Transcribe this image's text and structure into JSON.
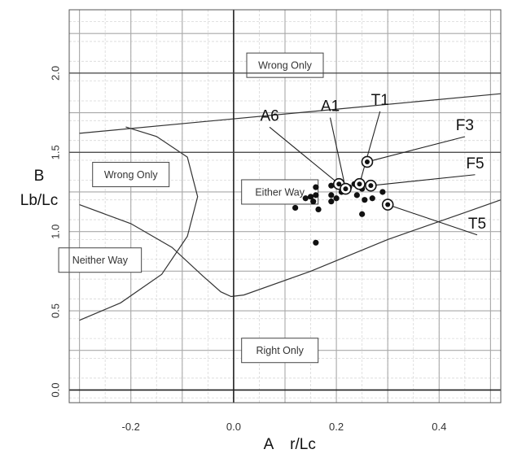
{
  "chart_data": {
    "type": "scatter",
    "title": "",
    "xlabel_letter": "A",
    "xlabel": "r/Lc",
    "ylabel_letter": "B",
    "ylabel": "Lb/Lc",
    "xlim": [
      -0.32,
      0.52
    ],
    "ylim": [
      -0.08,
      2.4
    ],
    "x_ticks": [
      {
        "value": -0.2,
        "label": "-0.2"
      },
      {
        "value": 0.0,
        "label": "0.0"
      },
      {
        "value": 0.2,
        "label": "0.2"
      },
      {
        "value": 0.4,
        "label": "0.4"
      }
    ],
    "y_ticks": [
      {
        "value": 0.0,
        "label": "0.0"
      },
      {
        "value": 0.5,
        "label": "0.5"
      },
      {
        "value": 1.0,
        "label": "1.0"
      },
      {
        "value": 1.5,
        "label": "1.5"
      },
      {
        "value": 2.0,
        "label": "2.0"
      }
    ],
    "grid": true,
    "regions": [
      {
        "label": "Wrong Only",
        "x": 0.1,
        "y": 2.05
      },
      {
        "label": "Wrong Only",
        "x": -0.2,
        "y": 1.36
      },
      {
        "label": "Either Way",
        "x": 0.09,
        "y": 1.25
      },
      {
        "label": "Neither Way",
        "x": -0.26,
        "y": 0.82
      },
      {
        "label": "Right Only",
        "x": 0.09,
        "y": 0.25
      }
    ],
    "boundaries": [
      {
        "points": [
          [
            -0.3,
            1.62
          ],
          [
            0.52,
            1.87
          ]
        ]
      },
      {
        "points": [
          [
            -0.3,
            1.17
          ],
          [
            -0.2,
            1.05
          ],
          [
            -0.12,
            0.9
          ],
          [
            -0.06,
            0.72
          ],
          [
            -0.025,
            0.62
          ],
          [
            -0.005,
            0.59
          ],
          [
            0.02,
            0.6
          ],
          [
            0.15,
            0.75
          ],
          [
            0.3,
            0.95
          ],
          [
            0.45,
            1.12
          ],
          [
            0.52,
            1.2
          ]
        ]
      },
      {
        "points": [
          [
            -0.3,
            0.44
          ],
          [
            -0.22,
            0.55
          ],
          [
            -0.14,
            0.73
          ],
          [
            -0.09,
            0.97
          ],
          [
            -0.07,
            1.22
          ],
          [
            -0.09,
            1.47
          ],
          [
            -0.15,
            1.6
          ],
          [
            -0.21,
            1.66
          ]
        ]
      }
    ],
    "points": [
      {
        "x": 0.12,
        "y": 1.15
      },
      {
        "x": 0.14,
        "y": 1.21
      },
      {
        "x": 0.15,
        "y": 1.22
      },
      {
        "x": 0.16,
        "y": 1.28
      },
      {
        "x": 0.16,
        "y": 1.23
      },
      {
        "x": 0.155,
        "y": 1.19
      },
      {
        "x": 0.165,
        "y": 1.14
      },
      {
        "x": 0.19,
        "y": 1.29
      },
      {
        "x": 0.19,
        "y": 1.23
      },
      {
        "x": 0.19,
        "y": 1.19
      },
      {
        "x": 0.2,
        "y": 1.21
      },
      {
        "x": 0.21,
        "y": 1.25
      },
      {
        "x": 0.215,
        "y": 1.26
      },
      {
        "x": 0.225,
        "y": 1.28
      },
      {
        "x": 0.235,
        "y": 1.3
      },
      {
        "x": 0.24,
        "y": 1.23
      },
      {
        "x": 0.25,
        "y": 1.27
      },
      {
        "x": 0.255,
        "y": 1.2
      },
      {
        "x": 0.25,
        "y": 1.11
      },
      {
        "x": 0.27,
        "y": 1.21
      },
      {
        "x": 0.29,
        "y": 1.25
      },
      {
        "x": 0.3,
        "y": 1.17
      },
      {
        "x": 0.16,
        "y": 0.93
      }
    ],
    "labeled_points": [
      {
        "label": "A6",
        "x": 0.205,
        "y": 1.3,
        "label_x": 0.07,
        "label_y": 1.7
      },
      {
        "label": "A1",
        "x": 0.218,
        "y": 1.27,
        "label_x": 0.188,
        "label_y": 1.76
      },
      {
        "label": "T1",
        "x": 0.245,
        "y": 1.3,
        "label_x": 0.285,
        "label_y": 1.8
      },
      {
        "label": "F3",
        "x": 0.26,
        "y": 1.44,
        "label_x": 0.45,
        "label_y": 1.64
      },
      {
        "label": "F5",
        "x": 0.267,
        "y": 1.29,
        "label_x": 0.47,
        "label_y": 1.4
      },
      {
        "label": "T5",
        "x": 0.3,
        "y": 1.17,
        "label_x": 0.474,
        "label_y": 1.02
      }
    ]
  }
}
